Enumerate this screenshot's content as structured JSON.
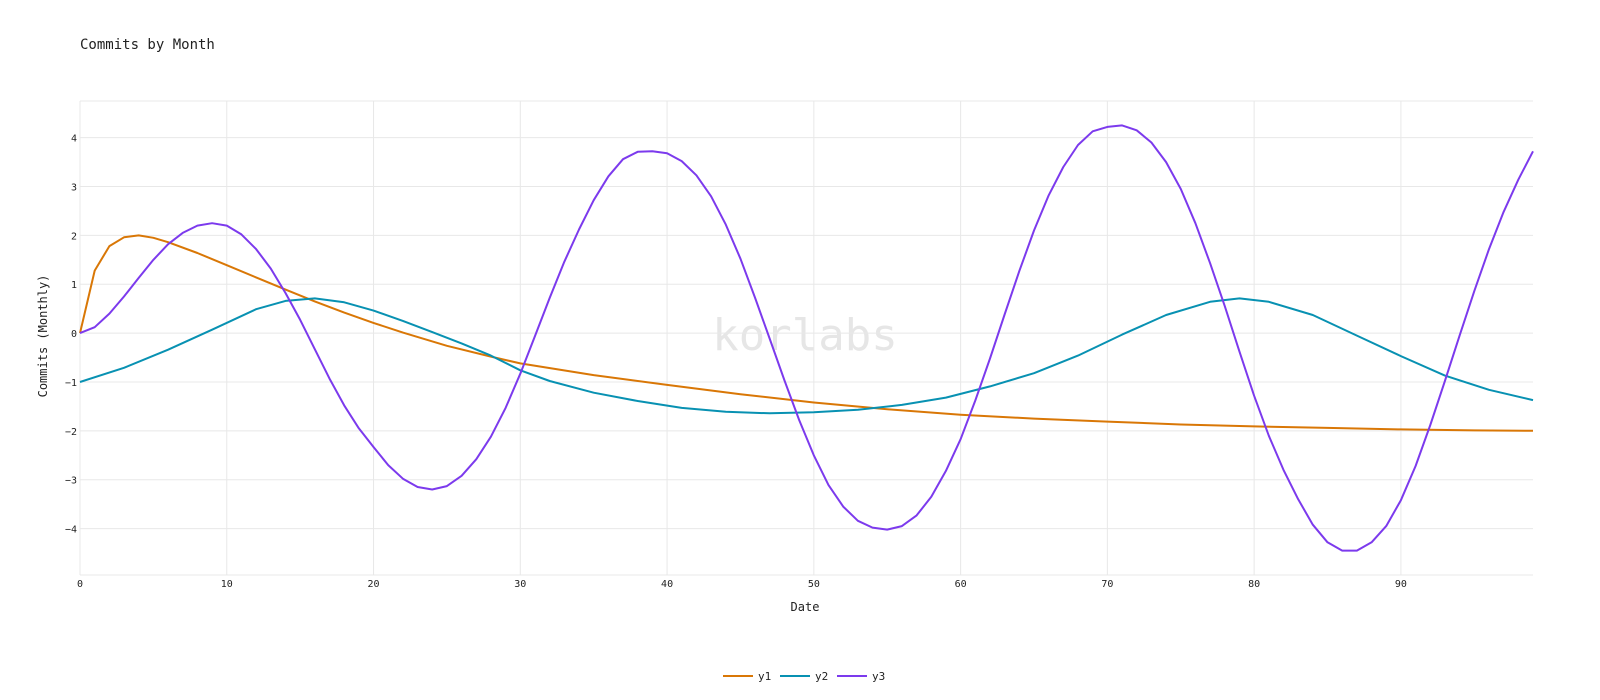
{
  "chart_data": {
    "type": "line",
    "title": "Commits by Month",
    "xlabel": "Date",
    "ylabel": "Commits (Monthly)",
    "watermark": "korlabs",
    "xlim": [
      0,
      99
    ],
    "ylim": [
      -4.95,
      4.75
    ],
    "xticks": [
      0,
      10,
      20,
      30,
      40,
      50,
      60,
      70,
      80,
      90
    ],
    "yticks": [
      -4,
      -3,
      -2,
      -1,
      0,
      1,
      2,
      3,
      4
    ],
    "grid": true,
    "legend_position": "bottom-center",
    "series": [
      {
        "name": "y1",
        "color": "#d97706",
        "points": [
          [
            0,
            0
          ],
          [
            1,
            1.28
          ],
          [
            2,
            1.78
          ],
          [
            3,
            1.96
          ],
          [
            4,
            2.0
          ],
          [
            5,
            1.95
          ],
          [
            6,
            1.86
          ],
          [
            8,
            1.64
          ],
          [
            10,
            1.39
          ],
          [
            12,
            1.14
          ],
          [
            14,
            0.89
          ],
          [
            16,
            0.65
          ],
          [
            18,
            0.42
          ],
          [
            20,
            0.21
          ],
          [
            22,
            0.01
          ],
          [
            25,
            -0.26
          ],
          [
            28,
            -0.48
          ],
          [
            30,
            -0.62
          ],
          [
            35,
            -0.86
          ],
          [
            40,
            -1.06
          ],
          [
            45,
            -1.25
          ],
          [
            50,
            -1.42
          ],
          [
            55,
            -1.56
          ],
          [
            60,
            -1.67
          ],
          [
            65,
            -1.75
          ],
          [
            70,
            -1.81
          ],
          [
            75,
            -1.87
          ],
          [
            80,
            -1.91
          ],
          [
            85,
            -1.94
          ],
          [
            90,
            -1.97
          ],
          [
            95,
            -1.99
          ],
          [
            99,
            -2.0
          ]
        ]
      },
      {
        "name": "y2",
        "color": "#0891b2",
        "points": [
          [
            0,
            -1.0
          ],
          [
            3,
            -0.71
          ],
          [
            6,
            -0.34
          ],
          [
            9,
            0.07
          ],
          [
            12,
            0.49
          ],
          [
            14,
            0.66
          ],
          [
            16,
            0.71
          ],
          [
            18,
            0.63
          ],
          [
            20,
            0.46
          ],
          [
            22,
            0.25
          ],
          [
            24,
            0.02
          ],
          [
            26,
            -0.21
          ],
          [
            28,
            -0.46
          ],
          [
            30,
            -0.76
          ],
          [
            32,
            -0.98
          ],
          [
            35,
            -1.22
          ],
          [
            38,
            -1.39
          ],
          [
            41,
            -1.53
          ],
          [
            44,
            -1.61
          ],
          [
            47,
            -1.64
          ],
          [
            50,
            -1.62
          ],
          [
            53,
            -1.57
          ],
          [
            56,
            -1.47
          ],
          [
            59,
            -1.32
          ],
          [
            62,
            -1.09
          ],
          [
            65,
            -0.82
          ],
          [
            68,
            -0.46
          ],
          [
            71,
            -0.03
          ],
          [
            74,
            0.37
          ],
          [
            77,
            0.64
          ],
          [
            79,
            0.71
          ],
          [
            81,
            0.64
          ],
          [
            84,
            0.37
          ],
          [
            87,
            -0.05
          ],
          [
            90,
            -0.47
          ],
          [
            93,
            -0.87
          ],
          [
            96,
            -1.16
          ],
          [
            99,
            -1.37
          ]
        ]
      },
      {
        "name": "y3",
        "color": "#7c3aed",
        "points": [
          [
            0,
            0
          ],
          [
            1,
            0.12
          ],
          [
            2,
            0.4
          ],
          [
            3,
            0.75
          ],
          [
            4,
            1.13
          ],
          [
            5,
            1.5
          ],
          [
            6,
            1.82
          ],
          [
            7,
            2.05
          ],
          [
            8,
            2.2
          ],
          [
            9,
            2.25
          ],
          [
            10,
            2.2
          ],
          [
            11,
            2.02
          ],
          [
            12,
            1.72
          ],
          [
            13,
            1.32
          ],
          [
            14,
            0.82
          ],
          [
            15,
            0.27
          ],
          [
            16,
            -0.33
          ],
          [
            17,
            -0.93
          ],
          [
            18,
            -1.48
          ],
          [
            19,
            -1.95
          ],
          [
            20,
            -2.33
          ],
          [
            21,
            -2.7
          ],
          [
            22,
            -2.98
          ],
          [
            23,
            -3.15
          ],
          [
            24,
            -3.2
          ],
          [
            25,
            -3.13
          ],
          [
            26,
            -2.92
          ],
          [
            27,
            -2.58
          ],
          [
            28,
            -2.12
          ],
          [
            29,
            -1.53
          ],
          [
            30,
            -0.83
          ],
          [
            31,
            -0.06
          ],
          [
            32,
            0.72
          ],
          [
            33,
            1.46
          ],
          [
            34,
            2.12
          ],
          [
            35,
            2.72
          ],
          [
            36,
            3.21
          ],
          [
            37,
            3.56
          ],
          [
            38,
            3.71
          ],
          [
            39,
            3.72
          ],
          [
            40,
            3.68
          ],
          [
            41,
            3.52
          ],
          [
            42,
            3.23
          ],
          [
            43,
            2.8
          ],
          [
            44,
            2.22
          ],
          [
            45,
            1.52
          ],
          [
            46,
            0.72
          ],
          [
            47,
            -0.12
          ],
          [
            48,
            -0.97
          ],
          [
            49,
            -1.78
          ],
          [
            50,
            -2.5
          ],
          [
            51,
            -3.11
          ],
          [
            52,
            -3.55
          ],
          [
            53,
            -3.84
          ],
          [
            54,
            -3.98
          ],
          [
            55,
            -4.02
          ],
          [
            56,
            -3.95
          ],
          [
            57,
            -3.73
          ],
          [
            58,
            -3.35
          ],
          [
            59,
            -2.82
          ],
          [
            60,
            -2.17
          ],
          [
            61,
            -1.38
          ],
          [
            62,
            -0.52
          ],
          [
            63,
            0.38
          ],
          [
            64,
            1.27
          ],
          [
            65,
            2.1
          ],
          [
            66,
            2.82
          ],
          [
            67,
            3.4
          ],
          [
            68,
            3.85
          ],
          [
            69,
            4.13
          ],
          [
            70,
            4.22
          ],
          [
            71,
            4.25
          ],
          [
            72,
            4.15
          ],
          [
            73,
            3.9
          ],
          [
            74,
            3.5
          ],
          [
            75,
            2.95
          ],
          [
            76,
            2.25
          ],
          [
            77,
            1.43
          ],
          [
            78,
            0.55
          ],
          [
            79,
            -0.38
          ],
          [
            80,
            -1.28
          ],
          [
            81,
            -2.1
          ],
          [
            82,
            -2.8
          ],
          [
            83,
            -3.4
          ],
          [
            84,
            -3.92
          ],
          [
            85,
            -4.28
          ],
          [
            86,
            -4.45
          ],
          [
            87,
            -4.45
          ],
          [
            88,
            -4.28
          ],
          [
            89,
            -3.95
          ],
          [
            90,
            -3.42
          ],
          [
            91,
            -2.72
          ],
          [
            92,
            -1.88
          ],
          [
            93,
            -0.98
          ],
          [
            94,
            -0.05
          ],
          [
            95,
            0.86
          ],
          [
            96,
            1.72
          ],
          [
            97,
            2.48
          ],
          [
            98,
            3.14
          ],
          [
            99,
            3.72
          ]
        ]
      }
    ]
  }
}
